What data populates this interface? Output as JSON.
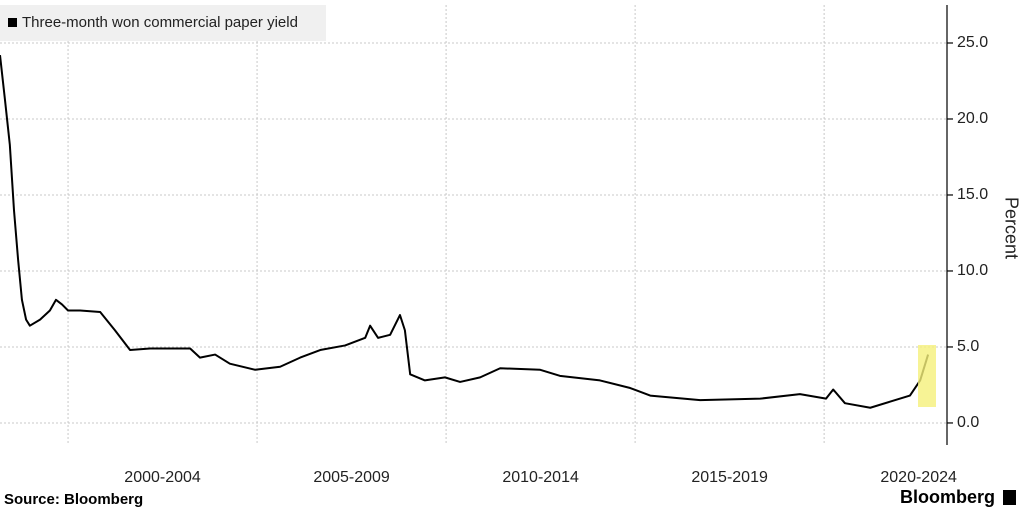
{
  "chart_data": {
    "type": "line",
    "legend": "Three-month won commercial paper yield",
    "y_label": "Percent",
    "source": "Source: Bloomberg",
    "brand": "Bloomberg",
    "x": [
      1998.2,
      1998.33,
      1998.46,
      1998.57,
      1998.68,
      1998.78,
      1998.89,
      1998.99,
      1999.26,
      1999.52,
      1999.68,
      1999.84,
      2000.0,
      2000.32,
      2000.85,
      2001.24,
      2001.64,
      2002.17,
      2002.7,
      2003.23,
      2003.49,
      2003.89,
      2004.28,
      2004.95,
      2005.61,
      2006.14,
      2006.67,
      2007.33,
      2007.86,
      2007.99,
      2008.2,
      2008.52,
      2008.78,
      2008.91,
      2009.05,
      2009.44,
      2009.97,
      2010.37,
      2010.9,
      2011.43,
      2012.49,
      2013.01,
      2014.07,
      2014.87,
      2015.4,
      2016.72,
      2018.31,
      2019.36,
      2020.05,
      2020.24,
      2020.55,
      2021.22,
      2021.74,
      2022.27,
      2022.54,
      2022.75
    ],
    "series": [
      {
        "name": "Three-month won commercial paper yield",
        "color": "#000000",
        "values": [
          24.2,
          21.3,
          18.3,
          14.0,
          10.7,
          8.1,
          6.8,
          6.4,
          6.8,
          7.4,
          8.1,
          7.8,
          7.4,
          7.4,
          7.3,
          6.1,
          4.8,
          4.9,
          4.9,
          4.9,
          4.3,
          4.5,
          3.9,
          3.5,
          3.7,
          4.3,
          4.8,
          5.1,
          5.6,
          6.4,
          5.6,
          5.8,
          7.1,
          6.1,
          3.2,
          2.8,
          3.0,
          2.7,
          3.0,
          3.6,
          3.5,
          3.1,
          2.8,
          2.3,
          1.8,
          1.5,
          1.6,
          1.9,
          1.6,
          2.2,
          1.3,
          1.0,
          1.4,
          1.8,
          2.8,
          4.5
        ]
      }
    ],
    "xlim": [
      1998.2,
      2023.25
    ],
    "xticks": [
      {
        "value": 2002.5,
        "label": "2000-2004"
      },
      {
        "value": 2007.5,
        "label": "2005-2009"
      },
      {
        "value": 2012.5,
        "label": "2010-2014"
      },
      {
        "value": 2017.5,
        "label": "2015-2019"
      },
      {
        "value": 2022.5,
        "label": "2020-2024"
      }
    ],
    "ylim": [
      -1.45,
      27.5
    ],
    "yticks": [
      {
        "value": 0,
        "label": "0.0"
      },
      {
        "value": 5,
        "label": "5.0"
      },
      {
        "value": 10,
        "label": "10.0"
      },
      {
        "value": 15,
        "label": "15.0"
      },
      {
        "value": 20,
        "label": "20.0"
      },
      {
        "value": 25,
        "label": "25.0"
      }
    ],
    "grid": true
  }
}
